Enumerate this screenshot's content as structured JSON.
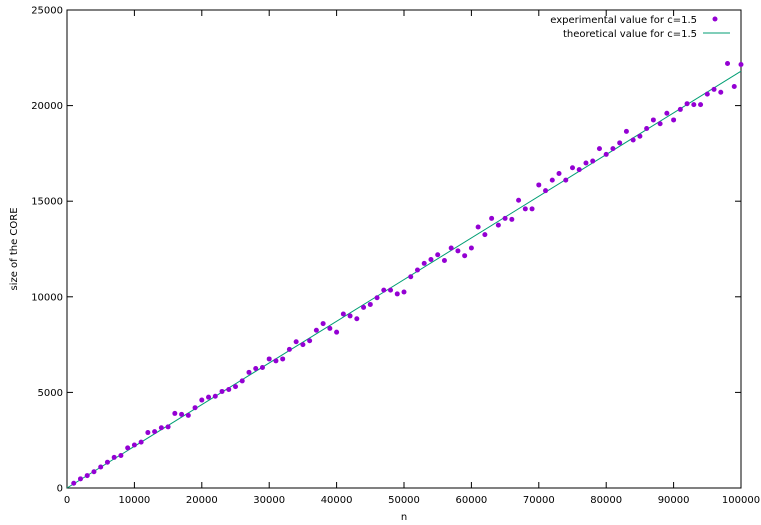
{
  "chart_data": {
    "type": "scatter",
    "title": "",
    "xlabel": "n",
    "ylabel": "size of the CORE",
    "xlim": [
      0,
      100000
    ],
    "ylim": [
      0,
      25000
    ],
    "grid": false,
    "legend_position": "top-right",
    "x_ticks": [
      "0",
      "10000",
      "20000",
      "30000",
      "40000",
      "50000",
      "60000",
      "70000",
      "80000",
      "90000",
      "100000"
    ],
    "y_ticks": [
      "0",
      "5000",
      "10000",
      "15000",
      "20000",
      "25000"
    ],
    "colors": {
      "experimental": "#9400d3",
      "theoretical": "#009e73"
    },
    "series": [
      {
        "name": "experimental value for c=1.5",
        "kind": "points",
        "x": [
          1000,
          2000,
          3000,
          4000,
          5000,
          6000,
          7000,
          8000,
          9000,
          10000,
          11000,
          12000,
          13000,
          14000,
          15000,
          16000,
          17000,
          18000,
          19000,
          20000,
          21000,
          22000,
          23000,
          24000,
          25000,
          26000,
          27000,
          28000,
          29000,
          30000,
          31000,
          32000,
          33000,
          34000,
          35000,
          36000,
          37000,
          38000,
          39000,
          40000,
          41000,
          42000,
          43000,
          44000,
          45000,
          46000,
          47000,
          48000,
          49000,
          50000,
          51000,
          52000,
          53000,
          54000,
          55000,
          56000,
          57000,
          58000,
          59000,
          60000,
          61000,
          62000,
          63000,
          64000,
          65000,
          66000,
          67000,
          68000,
          69000,
          70000,
          71000,
          72000,
          73000,
          74000,
          75000,
          76000,
          77000,
          78000,
          79000,
          80000,
          81000,
          82000,
          83000,
          84000,
          85000,
          86000,
          87000,
          88000,
          89000,
          90000,
          91000,
          92000,
          93000,
          94000,
          95000,
          96000,
          97000,
          98000,
          99000,
          100000
        ],
        "y": [
          250,
          480,
          650,
          850,
          1100,
          1350,
          1600,
          1700,
          2100,
          2250,
          2400,
          2900,
          2950,
          3150,
          3200,
          3900,
          3850,
          3800,
          4200,
          4600,
          4750,
          4800,
          5050,
          5150,
          5300,
          5600,
          6050,
          6250,
          6300,
          6750,
          6650,
          6750,
          7250,
          7650,
          7500,
          7700,
          8250,
          8600,
          8350,
          8150,
          9100,
          9000,
          8850,
          9450,
          9600,
          9950,
          10350,
          10350,
          10150,
          10250,
          11050,
          11400,
          11750,
          11950,
          12200,
          11900,
          12550,
          12400,
          12150,
          12550,
          13650,
          13250,
          14100,
          13750,
          14100,
          14050,
          15050,
          14600,
          14600,
          15850,
          15550,
          16100,
          16450,
          16100,
          16750,
          16650,
          17000,
          17100,
          17750,
          17450,
          17750,
          18050,
          18650,
          18200,
          18400,
          18800,
          19250,
          19050,
          19600,
          19250,
          19800,
          20100,
          20050,
          20050,
          20600,
          20850,
          20700,
          22200,
          21000,
          22150
        ]
      },
      {
        "name": "theoretical value for c=1.5",
        "kind": "line",
        "x": [
          0,
          100000
        ],
        "y": [
          0,
          21800
        ]
      }
    ]
  }
}
